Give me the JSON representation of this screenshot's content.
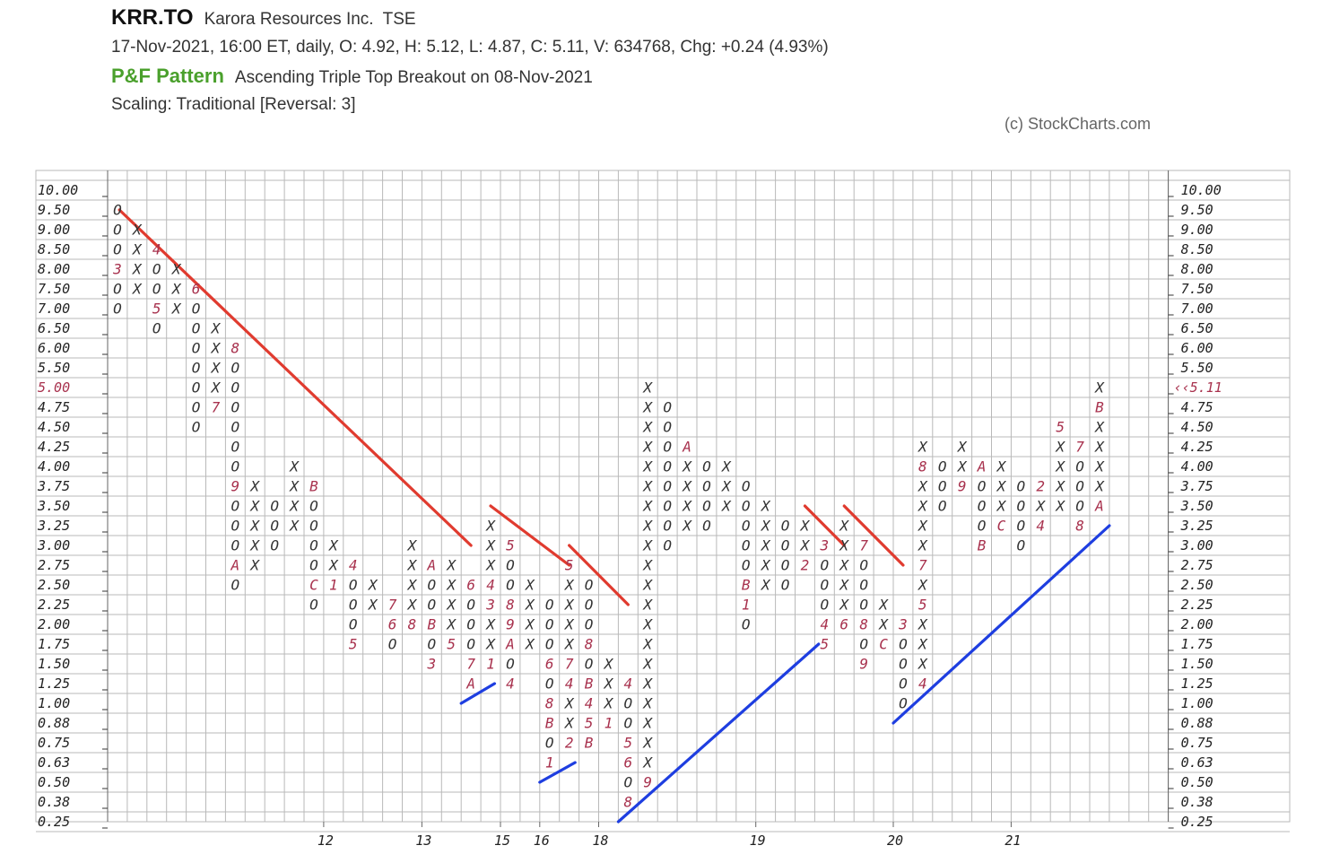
{
  "header": {
    "symbol": "KRR.TO",
    "company": "Karora Resources Inc.",
    "exchange": "TSE",
    "quote_line": "17-Nov-2021, 16:00 ET, daily, O: 4.92, H: 5.12, L: 4.87, C: 5.11, V: 634768, Chg: +0.24 (4.93%)",
    "pattern_label": "P&F Pattern",
    "pattern_text": "Ascending Triple Top Breakout on 08-Nov-2021",
    "scaling": "Scaling: Traditional [Reversal: 3]",
    "copyright": "(c) StockCharts.com"
  },
  "colors": {
    "grid": "#b9b9b9",
    "mark": "#333333",
    "month": "#a8324e",
    "resistance": "#e03b2f",
    "support": "#1e3ee0",
    "pattern": "#4aa02c"
  },
  "chart_data": {
    "type": "point-and-figure",
    "box_scale": [
      "10.00",
      "9.50",
      "9.00",
      "8.50",
      "8.00",
      "7.50",
      "7.00",
      "6.50",
      "6.00",
      "5.50",
      "5.00",
      "4.75",
      "4.50",
      "4.25",
      "4.00",
      "3.75",
      "3.50",
      "3.25",
      "3.00",
      "2.75",
      "2.50",
      "2.25",
      "2.00",
      "1.75",
      "1.50",
      "1.25",
      "1.00",
      "0.88",
      "0.75",
      "0.63",
      "0.50",
      "0.38",
      "0.25"
    ],
    "highlight_box": "5.00",
    "last_price_label": "5.11",
    "x_tick_labels": [
      {
        "label": "12",
        "col": 11
      },
      {
        "label": "13",
        "col": 16
      },
      {
        "label": "15",
        "col": 20
      },
      {
        "label": "16",
        "col": 22
      },
      {
        "label": "18",
        "col": 25
      },
      {
        "label": "19",
        "col": 33
      },
      {
        "label": "20",
        "col": 40
      },
      {
        "label": "21",
        "col": 46
      }
    ],
    "columns": [
      {
        "col": 0,
        "top": "9.50",
        "bottom": "7.00",
        "type": "O",
        "marks": {
          "8.00": "3"
        }
      },
      {
        "col": 1,
        "top": "9.00",
        "bottom": "7.50",
        "type": "X"
      },
      {
        "col": 2,
        "top": "8.50",
        "bottom": "6.50",
        "type": "O",
        "marks": {
          "8.50": "4",
          "7.00": "5"
        }
      },
      {
        "col": 3,
        "top": "8.00",
        "bottom": "7.00",
        "type": "X"
      },
      {
        "col": 4,
        "top": "7.50",
        "bottom": "4.50",
        "type": "O",
        "marks": {
          "7.50": "6"
        }
      },
      {
        "col": 5,
        "top": "6.50",
        "bottom": "4.75",
        "type": "X",
        "marks": {
          "4.75": "7"
        }
      },
      {
        "col": 6,
        "top": "6.00",
        "bottom": "2.50",
        "type": "O",
        "marks": {
          "6.00": "8",
          "3.75": "9",
          "2.75": "A"
        }
      },
      {
        "col": 7,
        "top": "3.75",
        "bottom": "2.75",
        "type": "X"
      },
      {
        "col": 8,
        "top": "3.50",
        "bottom": "3.00",
        "type": "O"
      },
      {
        "col": 9,
        "top": "4.00",
        "bottom": "3.25",
        "type": "X"
      },
      {
        "col": 10,
        "top": "3.75",
        "bottom": "2.25",
        "type": "O",
        "marks": {
          "3.75": "B",
          "2.50": "C"
        }
      },
      {
        "col": 11,
        "top": "3.00",
        "bottom": "2.50",
        "type": "X",
        "marks": {
          "2.50": "1"
        }
      },
      {
        "col": 12,
        "top": "2.75",
        "bottom": "1.75",
        "type": "O",
        "marks": {
          "2.75": "4",
          "1.75": "5"
        }
      },
      {
        "col": 13,
        "top": "2.50",
        "bottom": "2.25",
        "type": "X"
      },
      {
        "col": 14,
        "top": "2.25",
        "bottom": "1.75",
        "type": "O",
        "marks": {
          "2.25": "7",
          "2.00": "6"
        }
      },
      {
        "col": 15,
        "top": "3.00",
        "bottom": "2.00",
        "type": "X",
        "marks": {
          "2.00": "8"
        }
      },
      {
        "col": 16,
        "top": "2.75",
        "bottom": "1.50",
        "type": "O",
        "marks": {
          "2.75": "A",
          "2.00": "B",
          "1.50": "3"
        }
      },
      {
        "col": 17,
        "top": "2.75",
        "bottom": "1.75",
        "type": "X",
        "marks": {
          "1.75": "5"
        }
      },
      {
        "col": 18,
        "top": "2.50",
        "bottom": "1.25",
        "type": "O",
        "marks": {
          "2.50": "6",
          "1.50": "7",
          "1.25": "A"
        }
      },
      {
        "col": 19,
        "top": "3.25",
        "bottom": "1.50",
        "type": "X",
        "marks": {
          "2.50": "4",
          "2.25": "3",
          "1.50": "1"
        }
      },
      {
        "col": 20,
        "top": "3.00",
        "bottom": "1.25",
        "type": "O",
        "marks": {
          "3.00": "5",
          "2.25": "8",
          "2.00": "9",
          "1.75": "A",
          "1.25": "4"
        }
      },
      {
        "col": 21,
        "top": "2.50",
        "bottom": "1.75",
        "type": "X"
      },
      {
        "col": 22,
        "top": "2.25",
        "bottom": "0.63",
        "type": "O",
        "marks": {
          "1.50": "6",
          "1.00": "8",
          "0.88": "B",
          "0.63": "1"
        }
      },
      {
        "col": 23,
        "top": "2.75",
        "bottom": "0.75",
        "type": "X",
        "marks": {
          "2.75": "5",
          "1.50": "7",
          "1.25": "4",
          "0.75": "2"
        }
      },
      {
        "col": 24,
        "top": "2.50",
        "bottom": "0.75",
        "type": "O",
        "marks": {
          "1.75": "8",
          "1.25": "B",
          "1.00": "4",
          "0.88": "5",
          "0.75": "B"
        }
      },
      {
        "col": 25,
        "top": "1.50",
        "bottom": "0.88",
        "type": "X",
        "marks": {
          "0.88": "1"
        }
      },
      {
        "col": 26,
        "top": "1.25",
        "bottom": "0.38",
        "type": "O",
        "marks": {
          "1.25": "4",
          "0.75": "5",
          "0.63": "6",
          "0.38": "8"
        }
      },
      {
        "col": 27,
        "top": "4.90",
        "bottom": "0.50",
        "type": "X",
        "marks": {
          "0.50": "9"
        }
      },
      {
        "col": 28,
        "top": "4.75",
        "bottom": "3.00",
        "type": "O"
      },
      {
        "col": 29,
        "top": "4.25",
        "bottom": "3.25",
        "type": "X",
        "marks": {
          "4.25": "A"
        }
      },
      {
        "col": 30,
        "top": "4.00",
        "bottom": "3.25",
        "type": "O"
      },
      {
        "col": 31,
        "top": "4.00",
        "bottom": "3.50",
        "type": "X"
      },
      {
        "col": 32,
        "top": "3.75",
        "bottom": "2.00",
        "type": "O",
        "marks": {
          "2.50": "B",
          "2.25": "1"
        }
      },
      {
        "col": 33,
        "top": "3.50",
        "bottom": "2.50",
        "type": "X"
      },
      {
        "col": 34,
        "top": "3.25",
        "bottom": "2.50",
        "type": "O"
      },
      {
        "col": 35,
        "top": "3.25",
        "bottom": "2.75",
        "type": "X",
        "marks": {
          "2.75": "2"
        }
      },
      {
        "col": 36,
        "top": "3.00",
        "bottom": "1.75",
        "type": "O",
        "marks": {
          "3.00": "3",
          "2.00": "4",
          "1.75": "5"
        }
      },
      {
        "col": 37,
        "top": "3.25",
        "bottom": "2.00",
        "type": "X",
        "marks": {
          "2.00": "6"
        }
      },
      {
        "col": 38,
        "top": "3.00",
        "bottom": "1.50",
        "type": "O",
        "marks": {
          "3.00": "7",
          "2.00": "8",
          "1.50": "9"
        }
      },
      {
        "col": 39,
        "top": "2.25",
        "bottom": "1.75",
        "type": "X",
        "marks": {
          "1.75": "C"
        }
      },
      {
        "col": 40,
        "top": "2.00",
        "bottom": "1.00",
        "type": "O",
        "marks": {
          "2.00": "3"
        }
      },
      {
        "col": 41,
        "top": "4.25",
        "bottom": "1.25",
        "type": "X",
        "marks": {
          "4.00": "8",
          "2.75": "7",
          "2.25": "5",
          "1.25": "4"
        }
      },
      {
        "col": 42,
        "top": "4.00",
        "bottom": "3.50",
        "type": "O"
      },
      {
        "col": 43,
        "top": "4.25",
        "bottom": "3.75",
        "type": "X",
        "marks": {
          "3.75": "9"
        }
      },
      {
        "col": 44,
        "top": "4.00",
        "bottom": "3.00",
        "type": "O",
        "marks": {
          "4.00": "A",
          "3.00": "B"
        }
      },
      {
        "col": 45,
        "top": "4.00",
        "bottom": "3.25",
        "type": "X",
        "marks": {
          "3.25": "C"
        }
      },
      {
        "col": 46,
        "top": "3.75",
        "bottom": "3.00",
        "type": "O"
      },
      {
        "col": 47,
        "top": "3.75",
        "bottom": "3.25",
        "type": "X",
        "marks": {
          "3.75": "2",
          "3.25": "4"
        }
      },
      {
        "col": 48,
        "top": "4.50",
        "bottom": "3.50",
        "type": "X",
        "marks": {
          "4.50": "5"
        }
      },
      {
        "col": 49,
        "top": "4.25",
        "bottom": "3.25",
        "type": "O",
        "marks": {
          "4.25": "7",
          "3.25": "8"
        }
      },
      {
        "col": 50,
        "top": "4.90",
        "bottom": "3.50",
        "type": "X",
        "marks": {
          "4.75": "B",
          "3.50": "A"
        }
      }
    ],
    "trendlines": [
      {
        "kind": "resistance",
        "from": {
          "col": 0.6,
          "box": "9.50"
        },
        "to": {
          "col": 18.5,
          "box": "3.00"
        }
      },
      {
        "kind": "resistance",
        "from": {
          "col": 19.5,
          "box": "3.50"
        },
        "to": {
          "col": 23.5,
          "box": "2.75"
        }
      },
      {
        "kind": "resistance",
        "from": {
          "col": 23.5,
          "box": "3.00"
        },
        "to": {
          "col": 26.5,
          "box": "2.25"
        }
      },
      {
        "kind": "resistance",
        "from": {
          "col": 35.5,
          "box": "3.50"
        },
        "to": {
          "col": 37.5,
          "box": "3.00"
        }
      },
      {
        "kind": "resistance",
        "from": {
          "col": 37.5,
          "box": "3.50"
        },
        "to": {
          "col": 40.5,
          "box": "2.75"
        }
      },
      {
        "kind": "support",
        "from": {
          "col": 18,
          "box": "1.00"
        },
        "to": {
          "col": 19.7,
          "box": "1.25"
        }
      },
      {
        "kind": "support",
        "from": {
          "col": 22,
          "box": "0.50"
        },
        "to": {
          "col": 23.8,
          "box": "0.63"
        }
      },
      {
        "kind": "support",
        "from": {
          "col": 26,
          "box": "0.25"
        },
        "to": {
          "col": 36.2,
          "box": "1.75"
        }
      },
      {
        "kind": "support",
        "from": {
          "col": 40,
          "box": "0.88"
        },
        "to": {
          "col": 51,
          "box": "3.25"
        }
      }
    ]
  }
}
